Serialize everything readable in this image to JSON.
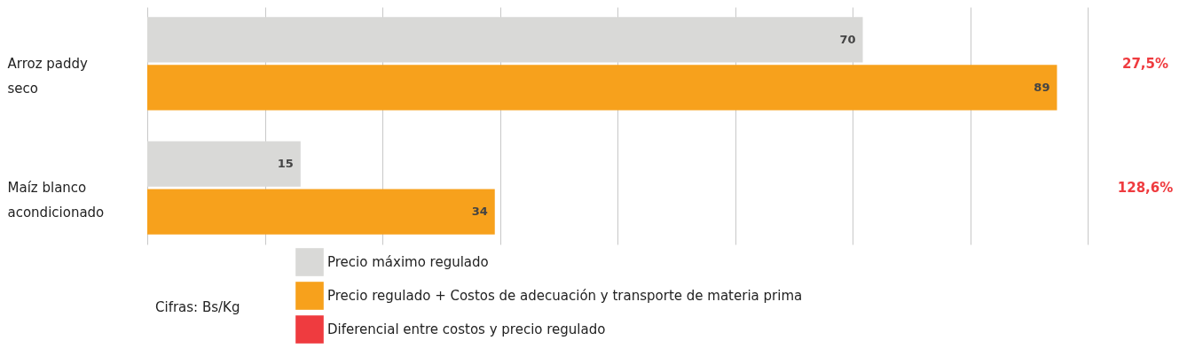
{
  "chart_data": {
    "type": "bar",
    "orientation": "horizontal",
    "categories": [
      "Arroz paddy seco",
      "Maíz blanco acondicionado"
    ],
    "series": [
      {
        "name": "Precio máximo regulado",
        "color": "#d9d9d7",
        "values": [
          70,
          15
        ]
      },
      {
        "name": "Precio regulado + Costos de adecuación y transporte de materia prima",
        "color": "#f7a11c",
        "values": [
          89,
          34
        ]
      },
      {
        "name": "Diferencial entre costos y precio regulado",
        "color": "#ef3b3f",
        "values": [
          null,
          null
        ],
        "value_labels": [
          "27,5%",
          "128,6%"
        ]
      }
    ],
    "xlim": [
      0,
      92
    ],
    "xticks": [
      {
        "value": 0,
        "label": null
      },
      {
        "value": 11.5,
        "label": null
      },
      {
        "value": 23,
        "label": null
      },
      {
        "value": 34.5,
        "label": null
      },
      {
        "value": 46,
        "label": null
      },
      {
        "value": 57.5,
        "label": null
      },
      {
        "value": 69,
        "label": null
      },
      {
        "value": 80.5,
        "label": null
      },
      {
        "value": 92,
        "label": null
      }
    ],
    "grid": "x",
    "data_labels": true,
    "legend": "bottom",
    "tick_labels": "y",
    "annotations": [
      "Cifras: Bs/Kg"
    ]
  }
}
